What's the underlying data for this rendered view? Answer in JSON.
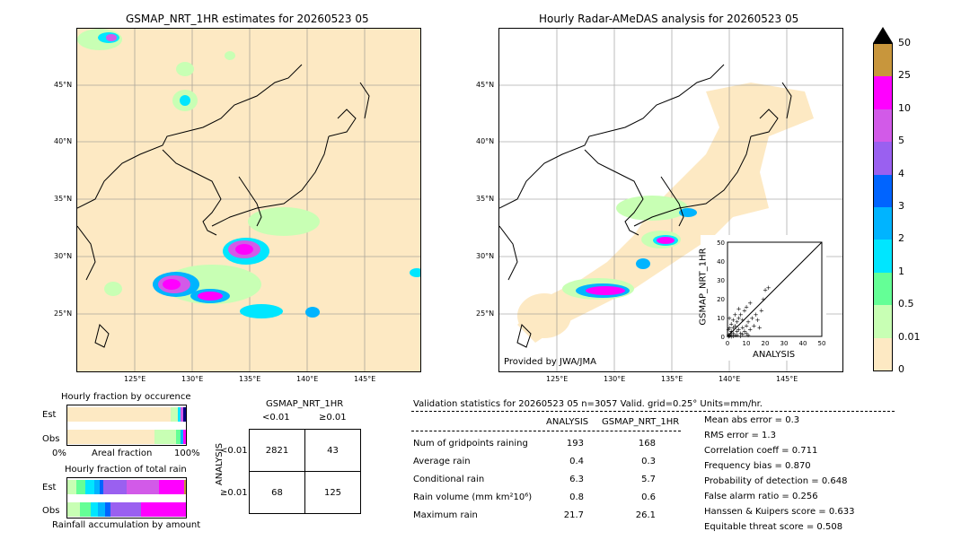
{
  "left_map": {
    "title": "GSMAP_NRT_1HR estimates for 20260523 05",
    "lat_labels": [
      "45°N",
      "40°N",
      "35°N",
      "30°N",
      "25°N"
    ],
    "lon_labels": [
      "125°E",
      "130°E",
      "135°E",
      "140°E",
      "145°E"
    ]
  },
  "right_map": {
    "title": "Hourly Radar-AMeDAS analysis for 20260523 05",
    "lat_labels": [
      "45°N",
      "40°N",
      "35°N",
      "30°N",
      "25°N"
    ],
    "lon_labels": [
      "125°E",
      "130°E",
      "135°E",
      "140°E",
      "145°E"
    ],
    "credit": "Provided by JWA/JMA"
  },
  "colorbar": {
    "labels": [
      "50",
      "25",
      "10",
      "5",
      "4",
      "3",
      "2",
      "1",
      "0.5",
      "0.01",
      "0"
    ],
    "colors": [
      "#c8963c",
      "#ff00ff",
      "#d25ae8",
      "#9a60f0",
      "#0064ff",
      "#00b4ff",
      "#00e6ff",
      "#64ff96",
      "#c8ffb4",
      "#fde9c3"
    ]
  },
  "chart_data": [
    {
      "type": "scatter",
      "xlabel": "ANALYSIS",
      "ylabel": "GSMAP_NRT_1HR",
      "xlim": [
        0,
        50
      ],
      "ylim": [
        0,
        50
      ],
      "x_ticks": [
        "0",
        "10",
        "20",
        "30",
        "40",
        "50"
      ],
      "y_ticks": [
        "0",
        "10",
        "20",
        "30",
        "40",
        "50"
      ],
      "points": [
        [
          0.5,
          0.3
        ],
        [
          1,
          0.8
        ],
        [
          1.5,
          2
        ],
        [
          2,
          1
        ],
        [
          2,
          3
        ],
        [
          3,
          2
        ],
        [
          3,
          5
        ],
        [
          4,
          1
        ],
        [
          4,
          6
        ],
        [
          5,
          3
        ],
        [
          5,
          8
        ],
        [
          6,
          4
        ],
        [
          6,
          10
        ],
        [
          7,
          2
        ],
        [
          7,
          12
        ],
        [
          8,
          5
        ],
        [
          8,
          9
        ],
        [
          9,
          3
        ],
        [
          9,
          14
        ],
        [
          10,
          6
        ],
        [
          10,
          16
        ],
        [
          11,
          8
        ],
        [
          12,
          4
        ],
        [
          12,
          18
        ],
        [
          13,
          10
        ],
        [
          14,
          6
        ],
        [
          15,
          12
        ],
        [
          16,
          9
        ],
        [
          17,
          5
        ],
        [
          18,
          14
        ],
        [
          19,
          20
        ],
        [
          20,
          25
        ],
        [
          21.7,
          26.1
        ],
        [
          1,
          5
        ],
        [
          2,
          7
        ],
        [
          3,
          9
        ],
        [
          0.5,
          4
        ],
        [
          1,
          10
        ],
        [
          4,
          12
        ],
        [
          6,
          15
        ],
        [
          0.5,
          1
        ],
        [
          1,
          0.5
        ],
        [
          2,
          0.2
        ],
        [
          3,
          0.5
        ],
        [
          5,
          1
        ],
        [
          7,
          0.5
        ],
        [
          8,
          1.5
        ],
        [
          10,
          2
        ],
        [
          11,
          1
        ]
      ]
    },
    {
      "type": "bar",
      "title": "Hourly fraction by occurence",
      "categories": [
        "Est",
        "Obs"
      ],
      "xlabel": "Areal fraction",
      "x_ticks": [
        "0%",
        "100%"
      ]
    },
    {
      "type": "bar",
      "title": "Hourly fraction of total rain",
      "categories": [
        "Est",
        "Obs"
      ],
      "xlabel": "Rainfall accumulation by amount"
    }
  ],
  "contingency": {
    "title": "GSMAP_NRT_1HR",
    "col_labels": [
      "<0.01",
      "≥0.01"
    ],
    "row_axis": "ANALYSIS",
    "row_labels": [
      "<0.01",
      "≥0.01"
    ],
    "cells": [
      [
        "2821",
        "43"
      ],
      [
        "68",
        "125"
      ]
    ]
  },
  "validation": {
    "header": "Validation statistics for 20260523 05  n=3057 Valid. grid=0.25° Units=mm/hr.",
    "col_analysis": "ANALYSIS",
    "col_gsmap": "GSMAP_NRT_1HR",
    "rows": [
      {
        "label": "Num of gridpoints raining",
        "analysis": "193",
        "gsmap": "168"
      },
      {
        "label": "Average rain",
        "analysis": "0.4",
        "gsmap": "0.3"
      },
      {
        "label": "Conditional rain",
        "analysis": "6.3",
        "gsmap": "5.7"
      },
      {
        "label": "Rain volume (mm km²10⁶)",
        "analysis": "0.8",
        "gsmap": "0.6"
      },
      {
        "label": "Maximum rain",
        "analysis": "21.7",
        "gsmap": "26.1"
      }
    ],
    "scores": [
      "Mean abs error =    0.3",
      "RMS error =    1.3",
      "Correlation coeff =  0.711",
      "Frequency bias =  0.870",
      "Probability of detection =  0.648",
      "False alarm ratio =  0.256",
      "Hanssen & Kuipers score =  0.633",
      "Equitable threat score =  0.508"
    ]
  }
}
